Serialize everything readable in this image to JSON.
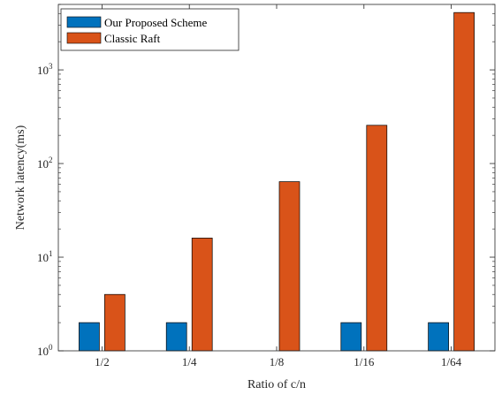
{
  "chart_data": {
    "type": "bar",
    "xlabel": "Ratio of c/n",
    "ylabel": "Network latency(ms)",
    "yscale": "log",
    "ylim": [
      1,
      5000
    ],
    "yticks": [
      {
        "value": 1,
        "base": "10",
        "exp": "0"
      },
      {
        "value": 10,
        "base": "10",
        "exp": "1"
      },
      {
        "value": 100,
        "base": "10",
        "exp": "2"
      },
      {
        "value": 1000,
        "base": "10",
        "exp": "3"
      }
    ],
    "grid": false,
    "legend_position": "top-left",
    "categories": [
      "1/2",
      "1/4",
      "1/8",
      "1/16",
      "1/64"
    ],
    "series": [
      {
        "name": "Our Proposed Scheme",
        "color": "#0072BD",
        "values": [
          2,
          2,
          1,
          2,
          2
        ]
      },
      {
        "name": "Classic Raft",
        "color": "#D95319",
        "values": [
          4,
          16,
          64,
          256,
          4096
        ]
      }
    ]
  }
}
